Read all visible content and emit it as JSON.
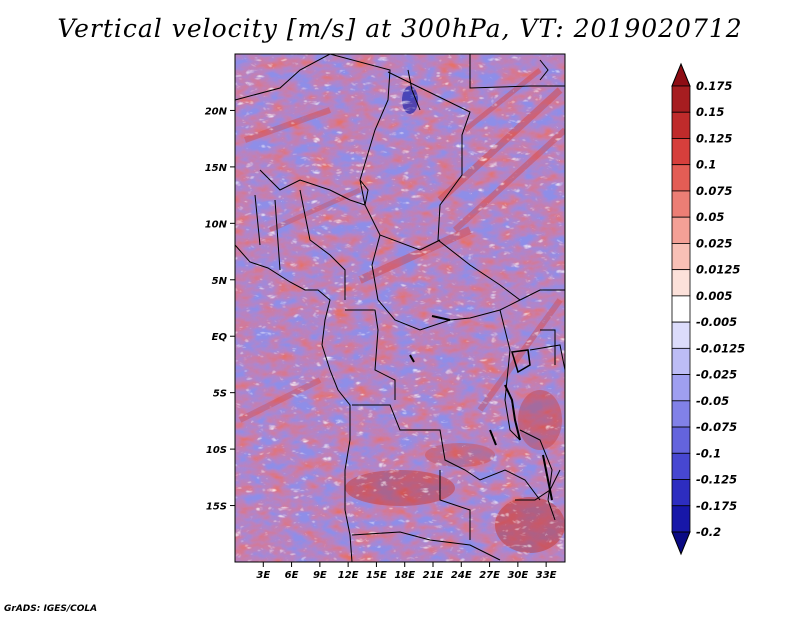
{
  "chart_data": {
    "type": "heatmap",
    "title": "Vertical velocity [m/s] at 300hPa, VT: 2019020712",
    "variable": "Vertical velocity",
    "units": "m/s",
    "level": "300hPa",
    "valid_time": "2019020712",
    "x_axis": {
      "label": "",
      "range": [
        0,
        35
      ],
      "ticks": [
        3,
        6,
        9,
        12,
        15,
        18,
        21,
        24,
        27,
        30,
        33
      ],
      "tick_labels": [
        "3E",
        "6E",
        "9E",
        "12E",
        "15E",
        "18E",
        "21E",
        "24E",
        "27E",
        "30E",
        "33E"
      ]
    },
    "y_axis": {
      "label": "",
      "range": [
        -20,
        25
      ],
      "ticks": [
        20,
        15,
        10,
        5,
        0,
        -5,
        -10,
        -15
      ],
      "tick_labels": [
        "20N",
        "15N",
        "10N",
        "5N",
        "EQ",
        "5S",
        "10S",
        "15S"
      ]
    },
    "colorbar": {
      "orientation": "vertical",
      "levels": [
        "0.175",
        "0.15",
        "0.125",
        "0.1",
        "0.075",
        "0.05",
        "0.025",
        "0.0125",
        "0.005",
        "-0.005",
        "-0.0125",
        "-0.025",
        "-0.05",
        "-0.075",
        "-0.1",
        "-0.125",
        "-0.175",
        "-0.2"
      ],
      "colors": [
        "#8e0d14",
        "#a61d20",
        "#bf2b2b",
        "#d63f3c",
        "#e35d55",
        "#ec7e75",
        "#f3a096",
        "#f8c0b6",
        "#fce1da",
        "#ffffff",
        "#dcdcfb",
        "#bdbdf6",
        "#9f9ff0",
        "#8181e8",
        "#6464dd",
        "#4747d1",
        "#2d2dc0",
        "#1717a8",
        "#0a0a84"
      ]
    },
    "colors": {
      "positive": "#d94a44",
      "negative": "#6a6ae0",
      "neutral": "#ffffff",
      "coast": "#000000"
    }
  },
  "footer": {
    "credit": "GrADS: IGES/COLA"
  }
}
